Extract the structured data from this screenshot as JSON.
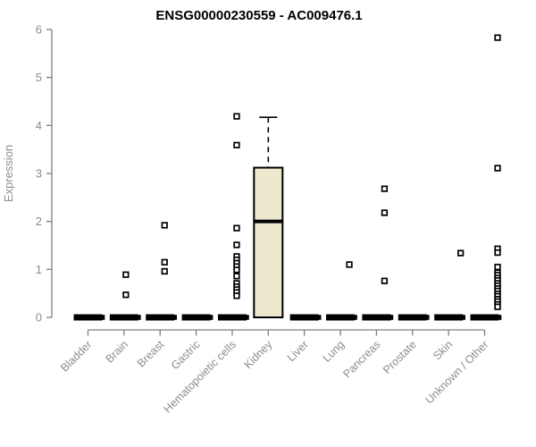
{
  "style": {
    "background": "#ffffff",
    "box_fill": "#EDE8CE",
    "box_border": "#000000",
    "median_color": "#000000",
    "flat_bar_color": "#000000",
    "axis_line_color": "#7F7F7F",
    "axis_text_color": "#8C8C8C",
    "title_color": "#000000",
    "marker": "open-square"
  },
  "chart_data": {
    "type": "boxplot",
    "title": "ENSG00000230559 - AC009476.1",
    "ylabel": "Expression",
    "xlabel": "",
    "ylim": [
      0,
      6
    ],
    "yticks": [
      0,
      1,
      2,
      3,
      4,
      5,
      6
    ],
    "grid": false,
    "legend": false,
    "categories": [
      "Bladder",
      "Brain",
      "Breast",
      "Gastric",
      "Hematopoietic cells",
      "Kidney",
      "Liver",
      "Lung",
      "Pancreas",
      "Prostate",
      "Skin",
      "Unknown / Other"
    ],
    "boxes": [
      {
        "category": "Bladder",
        "q1": 0,
        "median": 0,
        "q3": 0,
        "whisker_low": 0,
        "whisker_high": 0,
        "zero_points": true,
        "outliers": []
      },
      {
        "category": "Brain",
        "q1": 0,
        "median": 0,
        "q3": 0,
        "whisker_low": 0,
        "whisker_high": 0,
        "zero_points": true,
        "outliers": [
          0.89,
          0.47
        ]
      },
      {
        "category": "Breast",
        "q1": 0,
        "median": 0,
        "q3": 0,
        "whisker_low": 0,
        "whisker_high": 0,
        "zero_points": true,
        "outliers": [
          1.92,
          1.15,
          0.96
        ]
      },
      {
        "category": "Gastric",
        "q1": 0,
        "median": 0,
        "q3": 0,
        "whisker_low": 0,
        "whisker_high": 0,
        "zero_points": true,
        "outliers": []
      },
      {
        "category": "Hematopoietic cells",
        "q1": 0,
        "median": 0,
        "q3": 0,
        "whisker_low": 0,
        "whisker_high": 0,
        "zero_points": true,
        "outliers": [
          4.19,
          3.59,
          1.86,
          1.51,
          1.27,
          1.2,
          1.13,
          1.06,
          0.99,
          0.86,
          0.71,
          0.64,
          0.58,
          0.52,
          0.45
        ]
      },
      {
        "category": "Kidney",
        "q1": 0,
        "median": 2.0,
        "q3": 3.12,
        "whisker_low": 0,
        "whisker_high": 4.17,
        "zero_points": false,
        "outliers": []
      },
      {
        "category": "Liver",
        "q1": 0,
        "median": 0,
        "q3": 0,
        "whisker_low": 0,
        "whisker_high": 0,
        "zero_points": true,
        "outliers": []
      },
      {
        "category": "Lung",
        "q1": 0,
        "median": 0,
        "q3": 0,
        "whisker_low": 0,
        "whisker_high": 0,
        "zero_points": true,
        "outliers": [
          1.1
        ]
      },
      {
        "category": "Pancreas",
        "q1": 0,
        "median": 0,
        "q3": 0,
        "whisker_low": 0,
        "whisker_high": 0,
        "zero_points": true,
        "outliers": [
          2.68,
          2.18,
          0.76
        ]
      },
      {
        "category": "Prostate",
        "q1": 0,
        "median": 0,
        "q3": 0,
        "whisker_low": 0,
        "whisker_high": 0,
        "zero_points": true,
        "outliers": []
      },
      {
        "category": "Skin",
        "q1": 0,
        "median": 0,
        "q3": 0,
        "whisker_low": 0,
        "whisker_high": 0,
        "zero_points": true,
        "outliers": [
          1.34
        ]
      },
      {
        "category": "Unknown / Other",
        "q1": 0,
        "median": 0,
        "q3": 0,
        "whisker_low": 0,
        "whisker_high": 0,
        "zero_points": true,
        "outliers": [
          5.83,
          3.11,
          1.43,
          1.35,
          1.05,
          0.93,
          0.88,
          0.82,
          0.77,
          0.71,
          0.66,
          0.6,
          0.55,
          0.49,
          0.44,
          0.38,
          0.33,
          0.27,
          0.22
        ]
      }
    ]
  }
}
